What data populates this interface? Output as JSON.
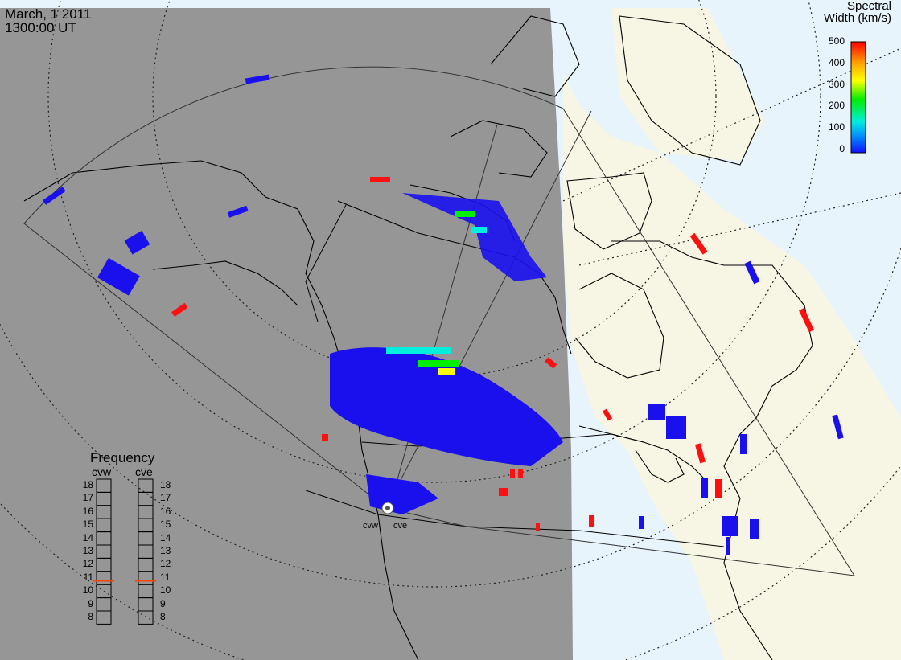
{
  "header": {
    "date": "March, 1 2011",
    "time": "1300:00 UT"
  },
  "colorbar": {
    "title_line1": "Spectral",
    "title_line2": "Width (km/s)",
    "ticks": [
      "500",
      "400",
      "300",
      "200",
      "100",
      "0"
    ],
    "colors": [
      "#ff0000",
      "#ffaa00",
      "#ffff00",
      "#00ee00",
      "#00eedd",
      "#0088ff",
      "#1111ff"
    ]
  },
  "frequency_panel": {
    "title": "Frequency",
    "left_radar": "cvw",
    "right_radar": "cve",
    "levels": [
      "18",
      "17",
      "16",
      "15",
      "14",
      "13",
      "12",
      "11",
      "10",
      "9",
      "8"
    ],
    "cvw_frequency": 10.8,
    "cve_frequency": 10.8,
    "marker_color": "#ff4400"
  },
  "radars": {
    "west": "cvw",
    "east": "cve"
  },
  "colors": {
    "night": "#969696",
    "day_land": "#f7f5e4",
    "day_ocean": "#e8f4fb",
    "scatter_low": "#1a10ee",
    "scatter_high": "#ff1010"
  }
}
